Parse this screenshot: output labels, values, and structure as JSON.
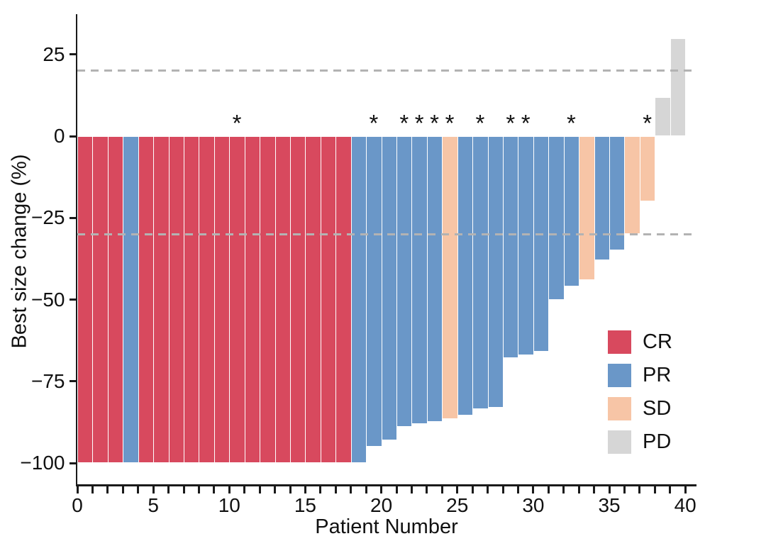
{
  "chart_data": {
    "type": "bar",
    "variant": "waterfall",
    "title": "",
    "xlabel": "Patient Number",
    "ylabel": "Best size change (%)",
    "xlim": [
      0,
      40.8
    ],
    "ylim": [
      -106.5,
      37.5
    ],
    "grid": false,
    "legend_position": "inside-right",
    "x_tick_label_values": [
      0,
      5,
      10,
      15,
      20,
      25,
      30,
      35,
      40
    ],
    "x_minor_ticks_every": 1,
    "y_ticks": [
      {
        "label": "25",
        "value": 25
      },
      {
        "label": "0",
        "value": 0
      },
      {
        "label": "−25",
        "value": -25
      },
      {
        "label": "−50",
        "value": -50
      },
      {
        "label": "−75",
        "value": -75
      },
      {
        "label": "−100",
        "value": -100
      }
    ],
    "reference_lines": [
      {
        "value": 20,
        "style": "dashed",
        "color": "#b3b3b3"
      },
      {
        "value": -30,
        "style": "dashed",
        "color": "#b3b3b3"
      }
    ],
    "annotation_symbol": "*",
    "legend": [
      {
        "label": "CR",
        "color": "#d8495e"
      },
      {
        "label": "PR",
        "color": "#6a97c8"
      },
      {
        "label": "SD",
        "color": "#f7c5a6"
      },
      {
        "label": "PD",
        "color": "#d6d6d6"
      }
    ],
    "patients": [
      {
        "number": 1,
        "value": -100,
        "response": "CR",
        "star": false
      },
      {
        "number": 2,
        "value": -100,
        "response": "CR",
        "star": false
      },
      {
        "number": 3,
        "value": -100,
        "response": "CR",
        "star": false
      },
      {
        "number": 4,
        "value": -100,
        "response": "PR",
        "star": false
      },
      {
        "number": 5,
        "value": -100,
        "response": "CR",
        "star": false
      },
      {
        "number": 6,
        "value": -100,
        "response": "CR",
        "star": false
      },
      {
        "number": 7,
        "value": -100,
        "response": "CR",
        "star": false
      },
      {
        "number": 8,
        "value": -100,
        "response": "CR",
        "star": false
      },
      {
        "number": 9,
        "value": -100,
        "response": "CR",
        "star": false
      },
      {
        "number": 10,
        "value": -100,
        "response": "CR",
        "star": false
      },
      {
        "number": 11,
        "value": -100,
        "response": "CR",
        "star": true
      },
      {
        "number": 12,
        "value": -100,
        "response": "CR",
        "star": false
      },
      {
        "number": 13,
        "value": -100,
        "response": "CR",
        "star": false
      },
      {
        "number": 14,
        "value": -100,
        "response": "CR",
        "star": false
      },
      {
        "number": 15,
        "value": -100,
        "response": "CR",
        "star": false
      },
      {
        "number": 16,
        "value": -100,
        "response": "CR",
        "star": false
      },
      {
        "number": 17,
        "value": -100,
        "response": "CR",
        "star": false
      },
      {
        "number": 18,
        "value": -100,
        "response": "CR",
        "star": false
      },
      {
        "number": 19,
        "value": -100,
        "response": "PR",
        "star": false
      },
      {
        "number": 20,
        "value": -95,
        "response": "PR",
        "star": true
      },
      {
        "number": 21,
        "value": -93,
        "response": "PR",
        "star": false
      },
      {
        "number": 22,
        "value": -89,
        "response": "PR",
        "star": true
      },
      {
        "number": 23,
        "value": -88,
        "response": "PR",
        "star": true
      },
      {
        "number": 24,
        "value": -87.5,
        "response": "PR",
        "star": true
      },
      {
        "number": 25,
        "value": -86.5,
        "response": "SD",
        "star": true
      },
      {
        "number": 26,
        "value": -85.5,
        "response": "PR",
        "star": false
      },
      {
        "number": 27,
        "value": -83.5,
        "response": "PR",
        "star": true
      },
      {
        "number": 28,
        "value": -83,
        "response": "PR",
        "star": false
      },
      {
        "number": 29,
        "value": -68,
        "response": "PR",
        "star": true
      },
      {
        "number": 30,
        "value": -67,
        "response": "PR",
        "star": true
      },
      {
        "number": 31,
        "value": -66,
        "response": "PR",
        "star": false
      },
      {
        "number": 32,
        "value": -50,
        "response": "PR",
        "star": false
      },
      {
        "number": 33,
        "value": -46,
        "response": "PR",
        "star": true
      },
      {
        "number": 34,
        "value": -44,
        "response": "SD",
        "star": false
      },
      {
        "number": 35,
        "value": -38,
        "response": "PR",
        "star": false
      },
      {
        "number": 36,
        "value": -35,
        "response": "PR",
        "star": false
      },
      {
        "number": 37,
        "value": -30,
        "response": "SD",
        "star": false
      },
      {
        "number": 38,
        "value": -20,
        "response": "SD",
        "star": true
      },
      {
        "number": 39,
        "value": 12,
        "response": "PD",
        "star": false
      },
      {
        "number": 40,
        "value": 30,
        "response": "PD",
        "star": false
      }
    ]
  }
}
